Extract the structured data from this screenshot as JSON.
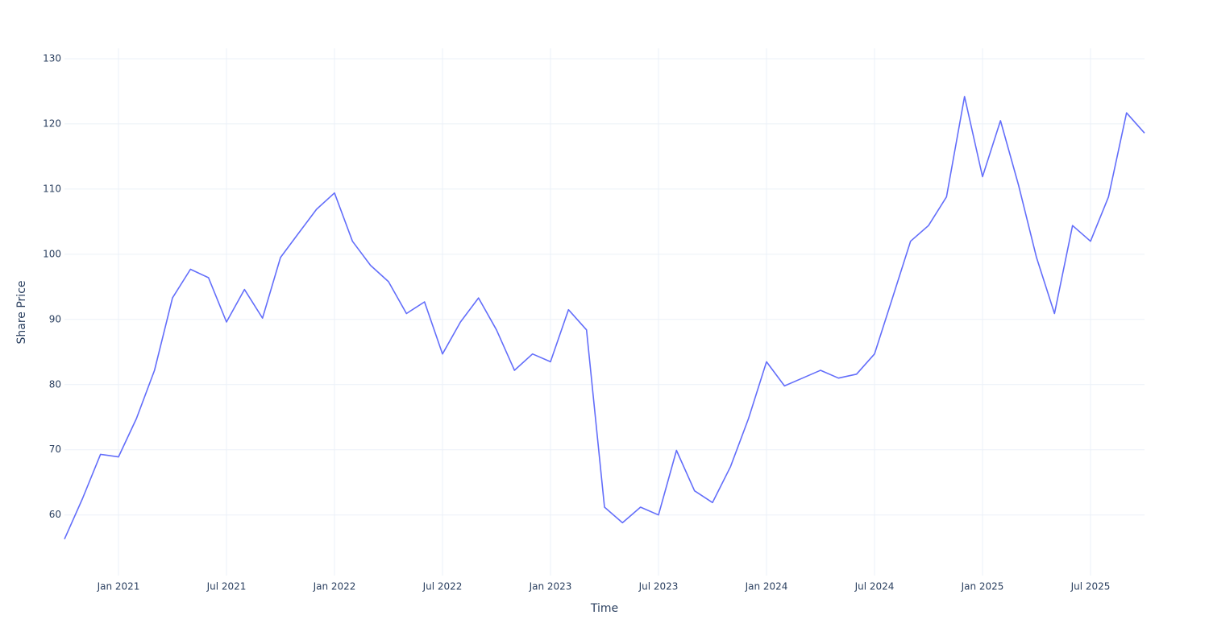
{
  "chart_data": {
    "type": "line",
    "x_label": "Time",
    "y_label": "Share Price",
    "x": [
      "2020-10",
      "2020-11",
      "2020-12",
      "2021-01",
      "2021-02",
      "2021-03",
      "2021-04",
      "2021-05",
      "2021-06",
      "2021-07",
      "2021-08",
      "2021-09",
      "2021-10",
      "2021-11",
      "2021-12",
      "2022-01",
      "2022-02",
      "2022-03",
      "2022-04",
      "2022-05",
      "2022-06",
      "2022-07",
      "2022-08",
      "2022-09",
      "2022-10",
      "2022-11",
      "2022-12",
      "2023-01",
      "2023-02",
      "2023-03",
      "2023-04",
      "2023-05",
      "2023-06",
      "2023-07",
      "2023-08",
      "2023-09",
      "2023-10",
      "2023-11",
      "2023-12",
      "2024-01",
      "2024-02",
      "2024-03",
      "2024-04",
      "2024-05",
      "2024-06",
      "2024-07",
      "2024-08",
      "2024-09",
      "2024-10",
      "2024-11",
      "2024-12",
      "2025-01",
      "2025-02",
      "2025-03",
      "2025-04",
      "2025-05",
      "2025-06",
      "2025-07",
      "2025-08",
      "2025-09",
      "2025-10"
    ],
    "series": [
      {
        "color": "#636efa",
        "values": [
          56.3,
          62.5,
          69.3,
          68.9,
          74.8,
          82.2,
          93.3,
          97.7,
          96.4,
          89.6,
          94.6,
          90.2,
          99.5,
          103.2,
          106.9,
          109.4,
          102.0,
          98.3,
          95.8,
          90.9,
          92.7,
          84.7,
          89.6,
          93.3,
          88.4,
          82.2,
          84.7,
          83.5,
          91.5,
          88.4,
          61.2,
          58.8,
          61.2,
          60.0,
          69.9,
          63.7,
          61.9,
          67.4,
          74.8,
          83.5,
          79.8,
          81.0,
          82.2,
          81.0,
          81.6,
          84.7,
          93.3,
          102.0,
          104.4,
          108.8,
          124.2,
          111.9,
          120.5,
          110.6,
          99.5,
          90.9,
          104.4,
          102.0,
          108.8,
          121.7,
          118.6
        ]
      }
    ],
    "xlim": [
      "2020-10",
      "2025-10"
    ],
    "xticks": [
      {
        "value": "2021-01",
        "label": "Jan 2021"
      },
      {
        "value": "2021-07",
        "label": "Jul 2021"
      },
      {
        "value": "2022-01",
        "label": "Jan 2022"
      },
      {
        "value": "2022-07",
        "label": "Jul 2022"
      },
      {
        "value": "2023-01",
        "label": "Jan 2023"
      },
      {
        "value": "2023-07",
        "label": "Jul 2023"
      },
      {
        "value": "2024-01",
        "label": "Jan 2024"
      },
      {
        "value": "2024-07",
        "label": "Jul 2024"
      },
      {
        "value": "2025-01",
        "label": "Jan 2025"
      },
      {
        "value": "2025-07",
        "label": "Jul 2025"
      }
    ],
    "ylim": [
      50.7,
      131.6
    ],
    "yticks": [
      60,
      70,
      80,
      90,
      100,
      110,
      120,
      130
    ],
    "grid": true
  }
}
